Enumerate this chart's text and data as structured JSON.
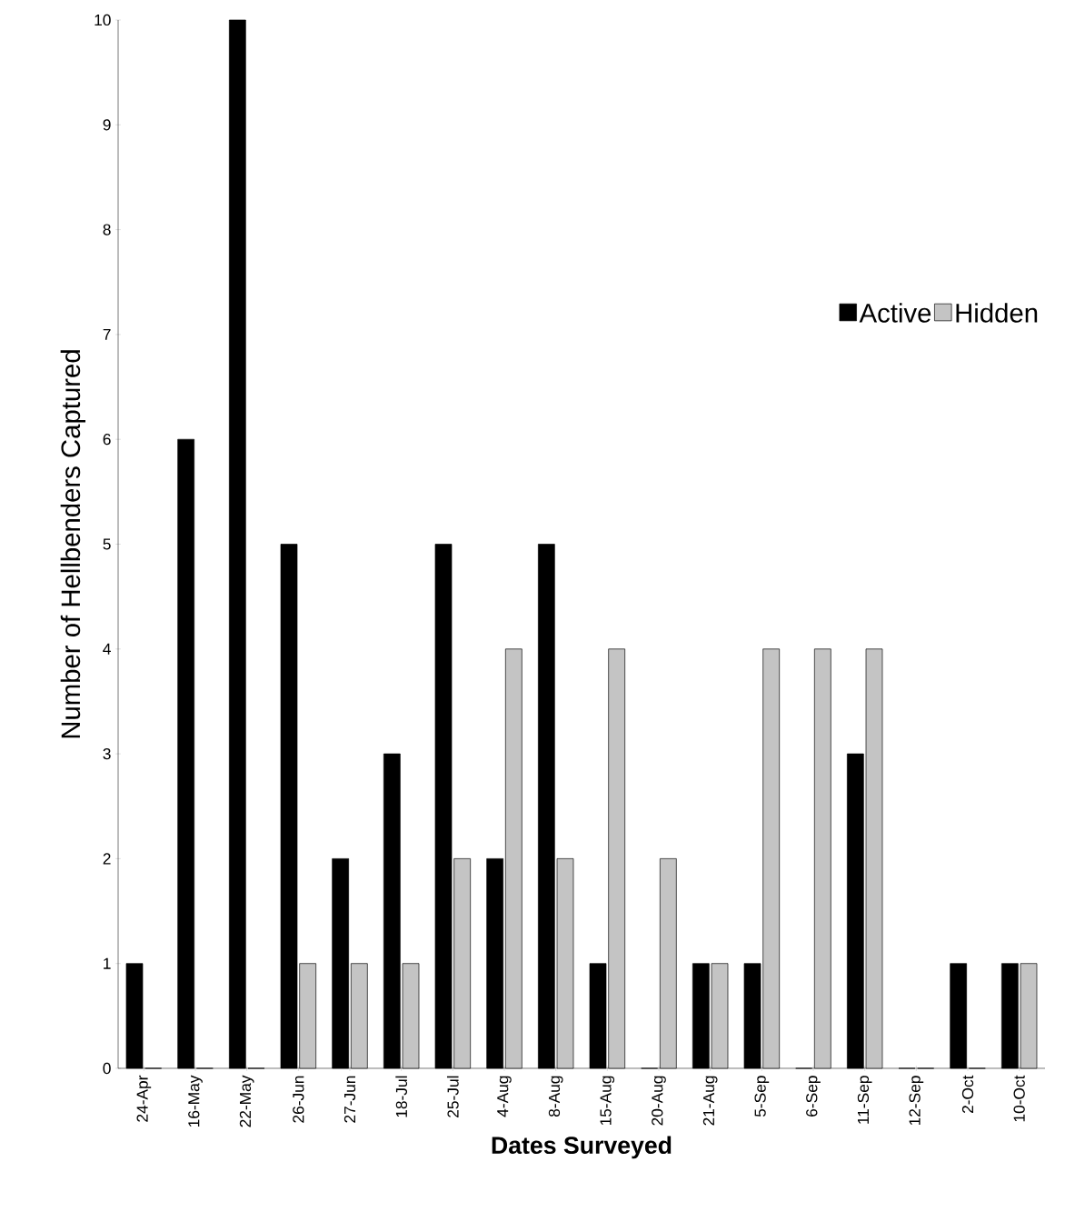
{
  "chart_data": {
    "type": "bar",
    "xlabel": "Dates Surveyed",
    "ylabel": "Number of Hellbenders Captured",
    "categories": [
      "24-Apr",
      "16-May",
      "22-May",
      "26-Jun",
      "27-Jun",
      "18-Jul",
      "25-Jul",
      "4-Aug",
      "8-Aug",
      "15-Aug",
      "20-Aug",
      "21-Aug",
      "5-Sep",
      "6-Sep",
      "11-Sep",
      "12-Sep",
      "2-Oct",
      "10-Oct"
    ],
    "series": [
      {
        "name": "Active",
        "color": "#000000",
        "values": [
          1,
          6,
          10,
          5,
          2,
          3,
          5,
          2,
          5,
          1,
          0,
          1,
          1,
          0,
          3,
          0,
          1,
          1
        ]
      },
      {
        "name": "Hidden",
        "color": "#c4c4c4",
        "values": [
          0,
          0,
          0,
          1,
          1,
          1,
          2,
          4,
          2,
          4,
          2,
          1,
          4,
          4,
          4,
          0,
          0,
          1
        ]
      }
    ],
    "ylim": [
      0,
      10
    ],
    "yticks": [
      0,
      1,
      2,
      3,
      4,
      5,
      6,
      7,
      8,
      9,
      10
    ],
    "grid": false,
    "legend": "right"
  }
}
